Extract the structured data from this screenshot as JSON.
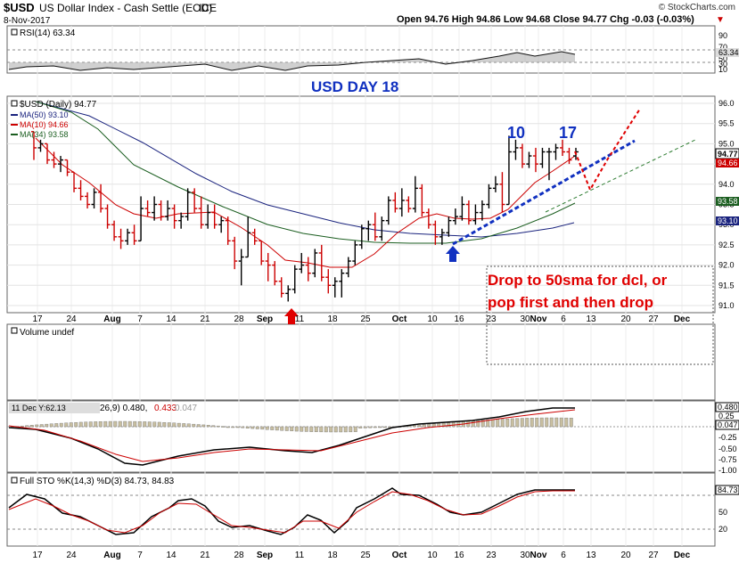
{
  "header": {
    "symbol": "$USD",
    "name": "US Dollar Index - Cash Settle (EOD)",
    "exchange": "ICE",
    "date": "8-Nov-2017",
    "copyright": "© StockCharts.com",
    "ohlc": "Open 94.76  High 94.86  Low 94.68  Close 94.77  Chg -0.03 (-0.03%)",
    "chg_marker": "▼"
  },
  "colors": {
    "up": "#000000",
    "down": "#cc0000",
    "ma50": "#1a237e",
    "ma10": "#cc0000",
    "ma34": "#1b5e20",
    "annot_blue": "#1030c0",
    "annot_red": "#e00000",
    "trend_green": "#2e7d32"
  },
  "rsi_panel": {
    "label": "RSI(14) 63.34",
    "value_badge": "63.34",
    "ticks": [
      "90",
      "70",
      "50",
      "30",
      "10"
    ]
  },
  "annotations": {
    "title": "USD DAY 18",
    "count_a": "10",
    "count_b": "17",
    "note_line1": "Drop to 50sma for dcl, or",
    "note_line2": "pop first and then drop"
  },
  "price_panel": {
    "legend_title": "$USD (Daily) 94.77",
    "legend_ma50": "MA(50) 93.10",
    "legend_ma10": "MA(10) 94.66",
    "legend_ma34": "MA(34) 93.58",
    "ticks": [
      "96.0",
      "95.5",
      "95.0",
      "94.5",
      "94.0",
      "93.5",
      "93.0",
      "92.5",
      "92.0",
      "91.5",
      "91.0"
    ],
    "badge_close": "94.77",
    "badge_ma10": "94.66",
    "badge_ma34": "93.58",
    "badge_ma50": "93.10"
  },
  "x_axis": [
    "17",
    "24",
    "Aug",
    "7",
    "14",
    "21",
    "28",
    "Sep",
    "11",
    "18",
    "25",
    "Oct",
    "10",
    "16",
    "23",
    "30",
    "Nov",
    "6",
    "13",
    "20",
    "27",
    "Dec"
  ],
  "volume_panel": {
    "label": "Volume undef"
  },
  "macd_panel": {
    "label_left": "11 Dec Y:62.13",
    "label_right": "26,9) 0.480, ",
    "label_signal": "0.433",
    "label_hist": "0.047",
    "ticks": [
      "0.25",
      "0.00",
      "-0.25",
      "-0.50",
      "-0.75",
      "-1.00"
    ],
    "badge_macd": "0.480",
    "badge_hist": "0.047"
  },
  "sto_panel": {
    "label": "Full STO %K(14,3) %D(3) 84.73, 84.83",
    "ticks": [
      "50",
      "20"
    ],
    "badge": "84.73"
  },
  "chart_data": {
    "type": "bar",
    "title": "$USD (Daily) 94.77",
    "ylim": [
      90.7,
      96.3
    ],
    "series": [
      {
        "name": "MA(50)",
        "value": 93.1
      },
      {
        "name": "MA(10)",
        "value": 94.66
      },
      {
        "name": "MA(34)",
        "value": 93.58
      }
    ],
    "ohlc": [
      [
        95.3,
        95.3,
        94.6,
        94.9
      ],
      [
        94.9,
        95.1,
        94.8,
        95.0
      ],
      [
        95.0,
        95.0,
        94.5,
        94.6
      ],
      [
        94.6,
        94.8,
        94.4,
        94.5
      ],
      [
        94.5,
        94.7,
        94.3,
        94.6
      ],
      [
        94.6,
        94.6,
        94.2,
        94.3
      ],
      [
        94.3,
        94.3,
        93.8,
        93.9
      ],
      [
        93.9,
        94.1,
        93.6,
        93.7
      ],
      [
        93.7,
        93.8,
        93.4,
        93.5
      ],
      [
        93.5,
        93.9,
        93.4,
        93.8
      ],
      [
        93.8,
        94.0,
        93.3,
        93.4
      ],
      [
        93.4,
        93.5,
        92.9,
        93.0
      ],
      [
        93.0,
        93.1,
        92.6,
        92.7
      ],
      [
        92.7,
        92.9,
        92.4,
        92.6
      ],
      [
        92.6,
        92.9,
        92.5,
        92.8
      ],
      [
        92.8,
        93.0,
        92.5,
        92.6
      ],
      [
        92.6,
        93.7,
        92.6,
        93.4
      ],
      [
        93.4,
        93.6,
        93.2,
        93.3
      ],
      [
        93.3,
        93.7,
        93.1,
        93.5
      ],
      [
        93.5,
        93.6,
        93.1,
        93.2
      ],
      [
        93.2,
        93.6,
        93.1,
        93.4
      ],
      [
        93.4,
        93.5,
        92.9,
        93.1
      ],
      [
        93.1,
        93.3,
        92.9,
        93.2
      ],
      [
        93.2,
        93.9,
        93.1,
        93.8
      ],
      [
        93.8,
        93.9,
        93.3,
        93.4
      ],
      [
        93.4,
        93.7,
        92.9,
        93.0
      ],
      [
        93.0,
        93.5,
        92.9,
        93.3
      ],
      [
        93.3,
        93.5,
        92.9,
        93.0
      ],
      [
        93.0,
        93.2,
        92.8,
        93.1
      ],
      [
        93.1,
        93.2,
        92.5,
        92.6
      ],
      [
        92.6,
        92.7,
        91.9,
        92.1
      ],
      [
        92.1,
        92.4,
        91.5,
        92.2
      ],
      [
        92.2,
        93.2,
        92.2,
        92.8
      ],
      [
        92.8,
        92.9,
        92.5,
        92.6
      ],
      [
        92.6,
        92.6,
        92.0,
        92.1
      ],
      [
        92.1,
        92.3,
        91.6,
        92.0
      ],
      [
        92.0,
        92.1,
        91.5,
        91.6
      ],
      [
        91.6,
        91.7,
        91.2,
        91.3
      ],
      [
        91.3,
        91.5,
        91.1,
        91.4
      ],
      [
        91.4,
        92.0,
        91.3,
        91.9
      ],
      [
        91.9,
        92.3,
        91.8,
        92.0
      ],
      [
        92.0,
        92.2,
        91.6,
        91.8
      ],
      [
        91.8,
        92.4,
        91.7,
        92.3
      ],
      [
        92.3,
        92.5,
        91.6,
        91.7
      ],
      [
        91.7,
        91.9,
        91.3,
        91.5
      ],
      [
        91.5,
        91.7,
        91.2,
        91.6
      ],
      [
        91.6,
        91.9,
        91.2,
        91.8
      ],
      [
        91.8,
        92.2,
        91.7,
        92.1
      ],
      [
        92.1,
        92.6,
        92.0,
        92.5
      ],
      [
        92.5,
        93.0,
        92.4,
        92.9
      ],
      [
        92.9,
        93.1,
        92.6,
        93.0
      ],
      [
        93.0,
        93.3,
        92.6,
        92.7
      ],
      [
        92.7,
        93.2,
        92.6,
        93.1
      ],
      [
        93.1,
        93.7,
        93.0,
        93.6
      ],
      [
        93.6,
        93.8,
        93.3,
        93.4
      ],
      [
        93.4,
        93.9,
        93.2,
        93.6
      ],
      [
        93.6,
        93.7,
        93.3,
        93.4
      ],
      [
        93.4,
        94.2,
        93.3,
        93.9
      ],
      [
        93.9,
        94.0,
        93.2,
        93.3
      ],
      [
        93.3,
        93.4,
        92.9,
        93.0
      ],
      [
        93.0,
        93.1,
        92.5,
        92.7
      ],
      [
        92.7,
        92.9,
        92.5,
        92.8
      ],
      [
        92.8,
        93.2,
        92.7,
        93.1
      ],
      [
        93.1,
        93.4,
        93.0,
        93.2
      ],
      [
        93.2,
        93.7,
        93.1,
        93.5
      ],
      [
        93.5,
        93.6,
        93.0,
        93.1
      ],
      [
        93.1,
        93.5,
        93.0,
        93.3
      ],
      [
        93.3,
        93.6,
        93.1,
        93.5
      ],
      [
        93.5,
        94.0,
        93.4,
        93.9
      ],
      [
        93.9,
        94.2,
        93.8,
        94.0
      ],
      [
        94.0,
        94.3,
        93.3,
        93.5
      ],
      [
        93.5,
        95.2,
        93.5,
        94.8
      ],
      [
        94.8,
        95.1,
        94.6,
        94.9
      ],
      [
        94.9,
        95.0,
        94.4,
        94.5
      ],
      [
        94.5,
        94.8,
        94.4,
        94.7
      ],
      [
        94.7,
        94.9,
        94.3,
        94.5
      ],
      [
        94.5,
        94.9,
        94.4,
        94.8
      ],
      [
        94.8,
        94.9,
        94.1,
        94.8
      ],
      [
        94.8,
        95.0,
        94.6,
        94.9
      ],
      [
        94.9,
        95.1,
        94.7,
        94.8
      ],
      [
        94.8,
        94.9,
        94.5,
        94.6
      ],
      [
        94.7,
        94.9,
        94.6,
        94.8
      ]
    ]
  }
}
